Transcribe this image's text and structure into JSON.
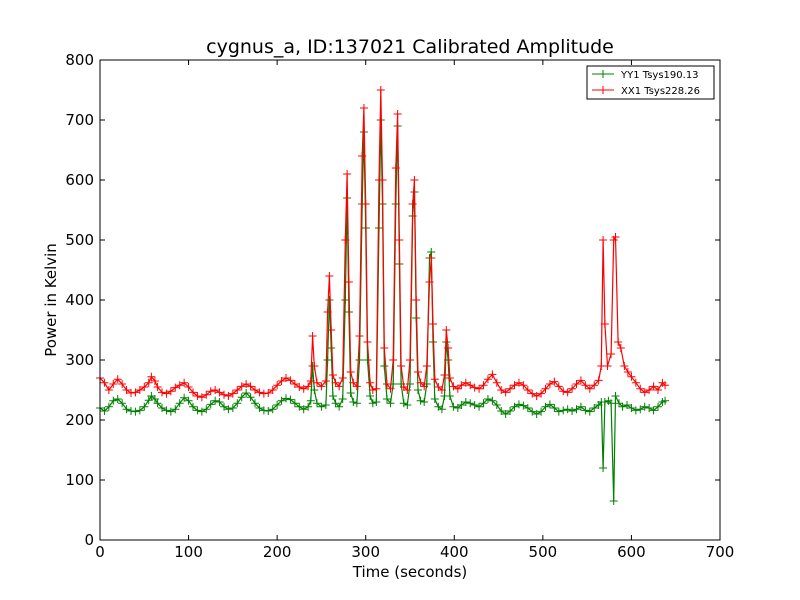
{
  "chart_data": {
    "type": "line",
    "title": "cygnus_a, ID:137021 Calibrated Amplitude",
    "xlabel": "Time (seconds)",
    "ylabel": "Power in Kelvin",
    "xlim": [
      0,
      700
    ],
    "ylim": [
      0,
      800
    ],
    "xticks": [
      0,
      100,
      200,
      300,
      400,
      500,
      600,
      700
    ],
    "yticks": [
      0,
      100,
      200,
      300,
      400,
      500,
      600,
      700,
      800
    ],
    "grid": false,
    "legend_position": "top-right",
    "marker": "plus",
    "series": [
      {
        "name": "YY1 Tsys190.13",
        "color": "#008000",
        "points": [
          [
            0,
            220
          ],
          [
            5,
            215
          ],
          [
            10,
            222
          ],
          [
            15,
            232
          ],
          [
            20,
            235
          ],
          [
            25,
            228
          ],
          [
            30,
            218
          ],
          [
            35,
            215
          ],
          [
            40,
            214
          ],
          [
            45,
            216
          ],
          [
            50,
            222
          ],
          [
            55,
            233
          ],
          [
            58,
            240
          ],
          [
            62,
            235
          ],
          [
            65,
            228
          ],
          [
            70,
            220
          ],
          [
            75,
            216
          ],
          [
            80,
            214
          ],
          [
            85,
            218
          ],
          [
            90,
            228
          ],
          [
            95,
            237
          ],
          [
            100,
            232
          ],
          [
            105,
            222
          ],
          [
            110,
            216
          ],
          [
            115,
            214
          ],
          [
            120,
            218
          ],
          [
            125,
            226
          ],
          [
            130,
            232
          ],
          [
            135,
            230
          ],
          [
            140,
            222
          ],
          [
            145,
            218
          ],
          [
            150,
            220
          ],
          [
            155,
            228
          ],
          [
            160,
            238
          ],
          [
            165,
            245
          ],
          [
            170,
            238
          ],
          [
            175,
            228
          ],
          [
            180,
            220
          ],
          [
            185,
            216
          ],
          [
            190,
            215
          ],
          [
            195,
            218
          ],
          [
            200,
            225
          ],
          [
            205,
            232
          ],
          [
            210,
            236
          ],
          [
            215,
            234
          ],
          [
            220,
            228
          ],
          [
            225,
            222
          ],
          [
            230,
            218
          ],
          [
            235,
            222
          ],
          [
            238,
            232
          ],
          [
            240,
            290
          ],
          [
            242,
            250
          ],
          [
            245,
            228
          ],
          [
            250,
            222
          ],
          [
            255,
            225
          ],
          [
            257,
            300
          ],
          [
            259,
            400
          ],
          [
            261,
            320
          ],
          [
            263,
            240
          ],
          [
            266,
            228
          ],
          [
            270,
            222
          ],
          [
            274,
            235
          ],
          [
            277,
            400
          ],
          [
            279,
            570
          ],
          [
            281,
            380
          ],
          [
            283,
            245
          ],
          [
            286,
            230
          ],
          [
            290,
            228
          ],
          [
            293,
            300
          ],
          [
            296,
            560
          ],
          [
            298,
            680
          ],
          [
            300,
            520
          ],
          [
            302,
            300
          ],
          [
            305,
            240
          ],
          [
            308,
            228
          ],
          [
            312,
            230
          ],
          [
            315,
            520
          ],
          [
            317,
            700
          ],
          [
            319,
            560
          ],
          [
            321,
            290
          ],
          [
            324,
            235
          ],
          [
            328,
            228
          ],
          [
            331,
            260
          ],
          [
            334,
            560
          ],
          [
            336,
            690
          ],
          [
            338,
            460
          ],
          [
            340,
            260
          ],
          [
            343,
            228
          ],
          [
            347,
            225
          ],
          [
            350,
            260
          ],
          [
            353,
            540
          ],
          [
            355,
            580
          ],
          [
            357,
            370
          ],
          [
            359,
            250
          ],
          [
            362,
            232
          ],
          [
            366,
            230
          ],
          [
            369,
            260
          ],
          [
            372,
            470
          ],
          [
            374,
            480
          ],
          [
            376,
            330
          ],
          [
            378,
            235
          ],
          [
            382,
            222
          ],
          [
            386,
            218
          ],
          [
            389,
            240
          ],
          [
            391,
            330
          ],
          [
            393,
            300
          ],
          [
            395,
            240
          ],
          [
            399,
            222
          ],
          [
            404,
            220
          ],
          [
            408,
            225
          ],
          [
            413,
            230
          ],
          [
            418,
            228
          ],
          [
            423,
            225
          ],
          [
            428,
            222
          ],
          [
            433,
            228
          ],
          [
            438,
            235
          ],
          [
            443,
            232
          ],
          [
            448,
            225
          ],
          [
            453,
            215
          ],
          [
            458,
            210
          ],
          [
            463,
            215
          ],
          [
            468,
            222
          ],
          [
            473,
            226
          ],
          [
            478,
            224
          ],
          [
            483,
            220
          ],
          [
            488,
            214
          ],
          [
            493,
            210
          ],
          [
            498,
            214
          ],
          [
            503,
            222
          ],
          [
            508,
            226
          ],
          [
            513,
            220
          ],
          [
            518,
            214
          ],
          [
            523,
            216
          ],
          [
            528,
            218
          ],
          [
            533,
            215
          ],
          [
            538,
            218
          ],
          [
            543,
            222
          ],
          [
            548,
            216
          ],
          [
            553,
            214
          ],
          [
            558,
            220
          ],
          [
            563,
            225
          ],
          [
            566,
            230
          ],
          [
            568,
            120
          ],
          [
            570,
            230
          ],
          [
            574,
            232
          ],
          [
            577,
            228
          ],
          [
            580,
            65
          ],
          [
            582,
            240
          ],
          [
            586,
            228
          ],
          [
            590,
            222
          ],
          [
            595,
            225
          ],
          [
            600,
            220
          ],
          [
            605,
            216
          ],
          [
            610,
            218
          ],
          [
            615,
            222
          ],
          [
            620,
            220
          ],
          [
            625,
            216
          ],
          [
            630,
            222
          ],
          [
            635,
            230
          ],
          [
            638,
            232
          ]
        ]
      },
      {
        "name": "XX1 Tsys228.26",
        "color": "#ff0000",
        "points": [
          [
            0,
            270
          ],
          [
            5,
            262
          ],
          [
            10,
            250
          ],
          [
            15,
            260
          ],
          [
            20,
            268
          ],
          [
            25,
            260
          ],
          [
            30,
            250
          ],
          [
            35,
            245
          ],
          [
            40,
            246
          ],
          [
            45,
            250
          ],
          [
            50,
            255
          ],
          [
            55,
            262
          ],
          [
            58,
            272
          ],
          [
            62,
            265
          ],
          [
            65,
            255
          ],
          [
            70,
            246
          ],
          [
            75,
            244
          ],
          [
            80,
            248
          ],
          [
            85,
            254
          ],
          [
            90,
            258
          ],
          [
            95,
            262
          ],
          [
            100,
            255
          ],
          [
            105,
            246
          ],
          [
            110,
            240
          ],
          [
            115,
            238
          ],
          [
            120,
            242
          ],
          [
            125,
            248
          ],
          [
            130,
            250
          ],
          [
            135,
            246
          ],
          [
            140,
            242
          ],
          [
            145,
            240
          ],
          [
            150,
            244
          ],
          [
            155,
            250
          ],
          [
            160,
            256
          ],
          [
            165,
            260
          ],
          [
            170,
            256
          ],
          [
            175,
            250
          ],
          [
            180,
            246
          ],
          [
            185,
            244
          ],
          [
            190,
            245
          ],
          [
            195,
            250
          ],
          [
            200,
            258
          ],
          [
            205,
            265
          ],
          [
            210,
            270
          ],
          [
            215,
            266
          ],
          [
            220,
            260
          ],
          [
            225,
            255
          ],
          [
            230,
            252
          ],
          [
            235,
            256
          ],
          [
            238,
            265
          ],
          [
            240,
            340
          ],
          [
            242,
            290
          ],
          [
            245,
            262
          ],
          [
            250,
            256
          ],
          [
            255,
            265
          ],
          [
            257,
            380
          ],
          [
            259,
            440
          ],
          [
            261,
            350
          ],
          [
            263,
            275
          ],
          [
            266,
            262
          ],
          [
            270,
            256
          ],
          [
            274,
            270
          ],
          [
            277,
            500
          ],
          [
            279,
            610
          ],
          [
            281,
            430
          ],
          [
            283,
            280
          ],
          [
            286,
            262
          ],
          [
            290,
            256
          ],
          [
            293,
            340
          ],
          [
            296,
            640
          ],
          [
            298,
            720
          ],
          [
            300,
            560
          ],
          [
            302,
            330
          ],
          [
            305,
            262
          ],
          [
            308,
            250
          ],
          [
            312,
            252
          ],
          [
            315,
            600
          ],
          [
            317,
            750
          ],
          [
            319,
            600
          ],
          [
            321,
            320
          ],
          [
            324,
            260
          ],
          [
            328,
            252
          ],
          [
            331,
            300
          ],
          [
            334,
            620
          ],
          [
            336,
            710
          ],
          [
            338,
            500
          ],
          [
            340,
            290
          ],
          [
            343,
            255
          ],
          [
            347,
            250
          ],
          [
            350,
            300
          ],
          [
            353,
            560
          ],
          [
            355,
            600
          ],
          [
            357,
            400
          ],
          [
            359,
            280
          ],
          [
            362,
            262
          ],
          [
            366,
            256
          ],
          [
            369,
            290
          ],
          [
            372,
            430
          ],
          [
            374,
            470
          ],
          [
            376,
            360
          ],
          [
            378,
            268
          ],
          [
            382,
            255
          ],
          [
            386,
            250
          ],
          [
            389,
            275
          ],
          [
            391,
            350
          ],
          [
            393,
            320
          ],
          [
            395,
            270
          ],
          [
            399,
            256
          ],
          [
            404,
            252
          ],
          [
            408,
            258
          ],
          [
            413,
            262
          ],
          [
            418,
            258
          ],
          [
            423,
            254
          ],
          [
            428,
            252
          ],
          [
            433,
            258
          ],
          [
            438,
            268
          ],
          [
            443,
            276
          ],
          [
            448,
            262
          ],
          [
            453,
            250
          ],
          [
            458,
            246
          ],
          [
            463,
            252
          ],
          [
            468,
            258
          ],
          [
            473,
            262
          ],
          [
            478,
            258
          ],
          [
            483,
            250
          ],
          [
            488,
            244
          ],
          [
            493,
            240
          ],
          [
            498,
            244
          ],
          [
            503,
            252
          ],
          [
            508,
            260
          ],
          [
            513,
            264
          ],
          [
            518,
            256
          ],
          [
            523,
            248
          ],
          [
            528,
            246
          ],
          [
            533,
            252
          ],
          [
            538,
            260
          ],
          [
            543,
            266
          ],
          [
            548,
            258
          ],
          [
            553,
            252
          ],
          [
            558,
            258
          ],
          [
            563,
            266
          ],
          [
            566,
            290
          ],
          [
            568,
            500
          ],
          [
            570,
            360
          ],
          [
            573,
            290
          ],
          [
            577,
            310
          ],
          [
            580,
            500
          ],
          [
            582,
            505
          ],
          [
            585,
            330
          ],
          [
            588,
            320
          ],
          [
            592,
            290
          ],
          [
            596,
            280
          ],
          [
            600,
            272
          ],
          [
            605,
            262
          ],
          [
            610,
            252
          ],
          [
            615,
            246
          ],
          [
            620,
            250
          ],
          [
            625,
            256
          ],
          [
            630,
            250
          ],
          [
            635,
            262
          ],
          [
            638,
            258
          ]
        ]
      }
    ]
  }
}
